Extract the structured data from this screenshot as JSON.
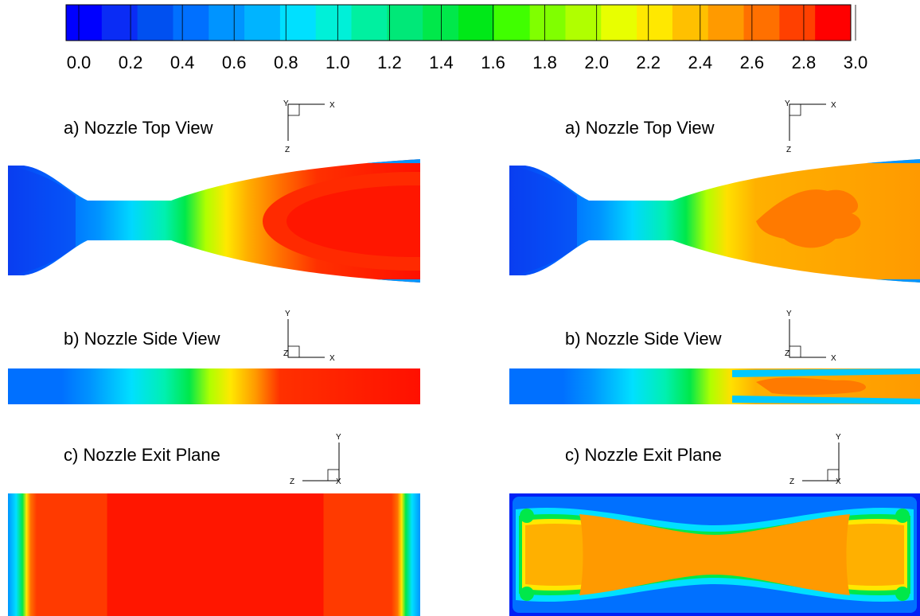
{
  "colorbar": {
    "ticks": [
      "0.0",
      "0.2",
      "0.4",
      "0.6",
      "0.8",
      "1.0",
      "1.2",
      "1.4",
      "1.6",
      "1.8",
      "2.0",
      "2.2",
      "2.4",
      "2.6",
      "2.8",
      "3.0"
    ],
    "min": 0.0,
    "max": 3.0,
    "levels": 21,
    "colors": [
      "#0000ff",
      "#0a2cf5",
      "#0050f0",
      "#0070ff",
      "#0094ff",
      "#00b4ff",
      "#00e0ff",
      "#00f0d8",
      "#00f0a0",
      "#00e878",
      "#00e84a",
      "#00e818",
      "#40ff00",
      "#80ff00",
      "#b0ff00",
      "#e8ff00",
      "#ffe800",
      "#ffc000",
      "#ff9a00",
      "#ff7000",
      "#ff4000",
      "#ff0000"
    ]
  },
  "panels": {
    "left": {
      "top": {
        "title": "a) Nozzle Top View",
        "axes": {
          "h": "X",
          "v": "Z",
          "n": "Y"
        }
      },
      "side": {
        "title": "b) Nozzle Side View",
        "axes": {
          "h": "X",
          "v": "Y",
          "n": "Z"
        }
      },
      "exit": {
        "title": "c) Nozzle Exit Plane",
        "axes": {
          "h": "Z",
          "v": "Y",
          "n": "X"
        }
      }
    },
    "right": {
      "top": {
        "title": "a) Nozzle Top View",
        "axes": {
          "h": "X",
          "v": "Z",
          "n": "Y"
        }
      },
      "side": {
        "title": "b) Nozzle Side View",
        "axes": {
          "h": "X",
          "v": "Y",
          "n": "Z"
        }
      },
      "exit": {
        "title": "c) Nozzle Exit Plane",
        "axes": {
          "h": "Z",
          "v": "Y",
          "n": "X"
        }
      }
    }
  }
}
